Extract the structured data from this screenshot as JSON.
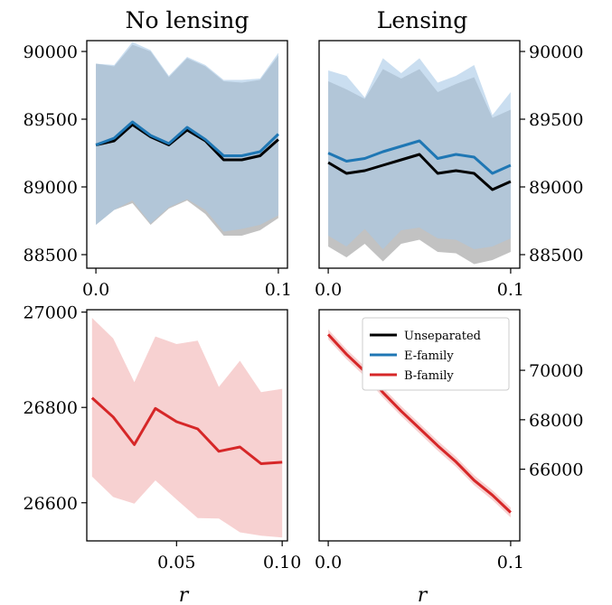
{
  "chart_data": [
    {
      "type": "line",
      "title": "No lensing",
      "xlabel": "",
      "ylabel": "",
      "xlim": [
        -0.005,
        0.105
      ],
      "ylim": [
        88400,
        90080
      ],
      "xticks": [
        0.0,
        0.1
      ],
      "xtick_labels": [
        "0.0",
        "0.1"
      ],
      "yticks": [
        88500,
        89000,
        89500,
        90000
      ],
      "ytick_labels": [
        "88500",
        "89000",
        "89500",
        "90000"
      ],
      "ytick_side": "left",
      "x": [
        0.0,
        0.01,
        0.02,
        0.03,
        0.04,
        0.05,
        0.06,
        0.07,
        0.08,
        0.09,
        0.1
      ],
      "series": [
        {
          "key": "unseparated",
          "color": "#000000",
          "band_color": "#999999",
          "mean": [
            89310,
            89340,
            89460,
            89370,
            89310,
            89420,
            89340,
            89200,
            89200,
            89230,
            89350
          ],
          "lower": [
            88720,
            88830,
            88880,
            88720,
            88840,
            88900,
            88800,
            88640,
            88640,
            88680,
            88770
          ],
          "upper": [
            89910,
            89890,
            90050,
            90000,
            89810,
            89950,
            89890,
            89780,
            89770,
            89790,
            89970
          ]
        },
        {
          "key": "e_family",
          "color": "#1f77b4",
          "band_color": "#a6c8e6",
          "mean": [
            89310,
            89360,
            89480,
            89380,
            89320,
            89440,
            89350,
            89230,
            89230,
            89260,
            89390
          ],
          "lower": [
            88720,
            88830,
            88900,
            88730,
            88850,
            88910,
            88830,
            88670,
            88690,
            88720,
            88790
          ],
          "upper": [
            89910,
            89900,
            90070,
            90010,
            89820,
            89960,
            89900,
            89790,
            89790,
            89800,
            89990
          ]
        }
      ]
    },
    {
      "type": "line",
      "title": "Lensing",
      "xlabel": "",
      "ylabel": "",
      "xlim": [
        -0.005,
        0.105
      ],
      "ylim": [
        88400,
        90080
      ],
      "xticks": [
        0.0,
        0.1
      ],
      "xtick_labels": [
        "0.0",
        "0.1"
      ],
      "yticks": [
        88500,
        89000,
        89500,
        90000
      ],
      "ytick_labels": [
        "88500",
        "89000",
        "89500",
        "90000"
      ],
      "ytick_side": "right",
      "x": [
        0.0,
        0.01,
        0.02,
        0.03,
        0.04,
        0.05,
        0.06,
        0.07,
        0.08,
        0.09,
        0.1
      ],
      "series": [
        {
          "key": "unseparated",
          "color": "#000000",
          "band_color": "#999999",
          "mean": [
            89180,
            89100,
            89120,
            89160,
            89200,
            89240,
            89100,
            89120,
            89100,
            88980,
            89040
          ],
          "lower": [
            88560,
            88480,
            88580,
            88450,
            88580,
            88610,
            88520,
            88510,
            88430,
            88460,
            88520
          ],
          "upper": [
            89780,
            89720,
            89650,
            89870,
            89800,
            89870,
            89700,
            89760,
            89810,
            89510,
            89570
          ]
        },
        {
          "key": "e_family",
          "color": "#1f77b4",
          "band_color": "#a6c8e6",
          "mean": [
            89250,
            89190,
            89210,
            89260,
            89300,
            89340,
            89210,
            89240,
            89220,
            89100,
            89160
          ],
          "lower": [
            88640,
            88560,
            88690,
            88540,
            88680,
            88700,
            88620,
            88610,
            88540,
            88560,
            88620
          ],
          "upper": [
            89860,
            89820,
            89660,
            89950,
            89840,
            89950,
            89770,
            89820,
            89900,
            89530,
            89700
          ]
        }
      ]
    },
    {
      "type": "line",
      "title": "",
      "xlabel": "r",
      "ylabel": "",
      "xlim": [
        0.0075,
        0.1025
      ],
      "ylim": [
        26520,
        27005
      ],
      "xticks": [
        0.05,
        0.1
      ],
      "xtick_labels": [
        "0.05",
        "0.10"
      ],
      "yticks": [
        26600,
        26800,
        27000
      ],
      "ytick_labels": [
        "26600",
        "26800",
        "27000"
      ],
      "ytick_side": "left",
      "x": [
        0.01,
        0.02,
        0.03,
        0.04,
        0.05,
        0.06,
        0.07,
        0.08,
        0.09,
        0.1
      ],
      "series": [
        {
          "key": "b_family",
          "color": "#d62728",
          "band_color": "#f2b2b2",
          "mean": [
            26820,
            26780,
            26722,
            26798,
            26770,
            26755,
            26708,
            26717,
            26682,
            26685
          ],
          "lower": [
            26655,
            26612,
            26598,
            26647,
            26607,
            26568,
            26567,
            26538,
            26531,
            26527
          ],
          "upper": [
            26988,
            26945,
            26853,
            26949,
            26933,
            26940,
            26843,
            26898,
            26832,
            26839
          ]
        }
      ]
    },
    {
      "type": "line",
      "title": "",
      "xlabel": "r",
      "ylabel": "",
      "xlim": [
        -0.005,
        0.105
      ],
      "ylim": [
        63100,
        72450
      ],
      "xticks": [
        0.0,
        0.1
      ],
      "xtick_labels": [
        "0.0",
        "0.1"
      ],
      "yticks": [
        66000,
        68000,
        70000
      ],
      "ytick_labels": [
        "66000",
        "68000",
        "70000"
      ],
      "ytick_side": "right",
      "x": [
        0.0,
        0.01,
        0.02,
        0.03,
        0.04,
        0.05,
        0.06,
        0.07,
        0.08,
        0.09,
        0.1
      ],
      "series": [
        {
          "key": "b_family",
          "color": "#d62728",
          "band_color": "#f2b2b2",
          "mean": [
            71450,
            70650,
            69950,
            69100,
            68350,
            67650,
            66950,
            66300,
            65550,
            64950,
            64250
          ],
          "lower": [
            71250,
            70450,
            69750,
            68900,
            68150,
            67450,
            66750,
            66100,
            65350,
            64750,
            64050
          ],
          "upper": [
            71650,
            70850,
            70150,
            69300,
            68550,
            67850,
            67150,
            66500,
            65750,
            65150,
            64450
          ]
        }
      ],
      "legend": {
        "placement": "top-right",
        "entries": [
          {
            "label": "Unseparated",
            "color": "#000000"
          },
          {
            "label": "E-family",
            "color": "#1f77b4"
          },
          {
            "label": "B-family",
            "color": "#d62728"
          }
        ]
      }
    }
  ]
}
